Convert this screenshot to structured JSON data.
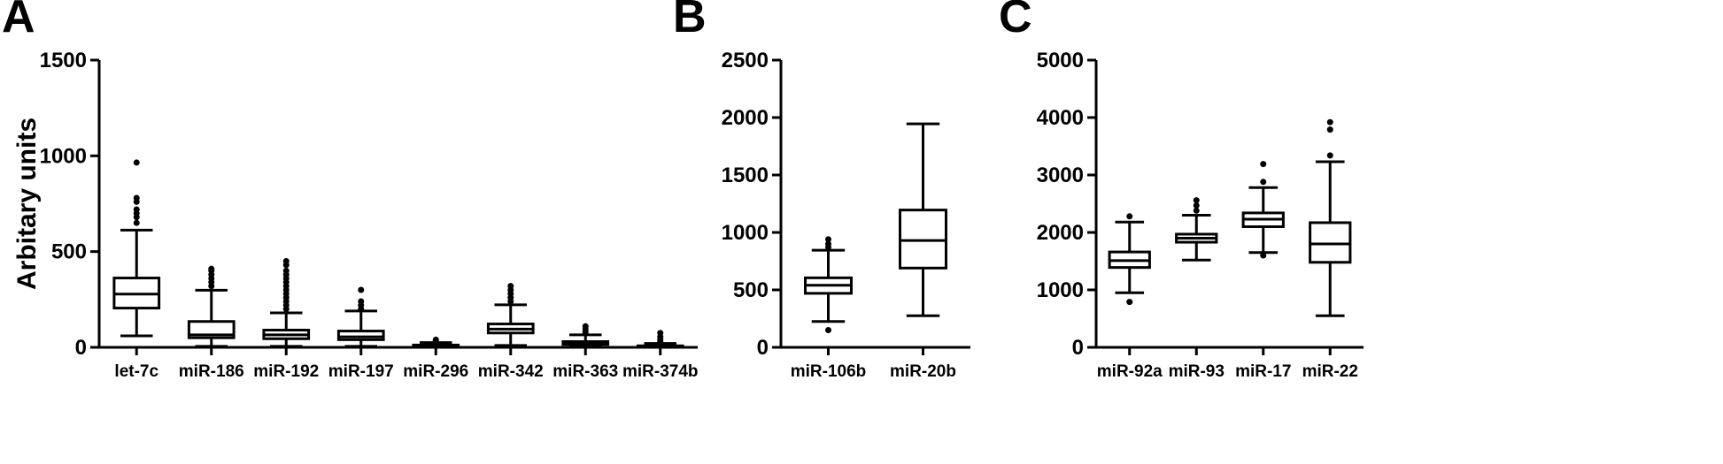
{
  "chart_data": [
    {
      "type": "box",
      "panel_label": "A",
      "ylabel": "Arbitary  units",
      "ylim": [
        0,
        1500
      ],
      "yticks": [
        0,
        500,
        1000,
        1500
      ],
      "grid": false,
      "categories": [
        "let-7c",
        "miR-186",
        "miR-192",
        "miR-197",
        "miR-296",
        "miR-342",
        "miR-363",
        "miR-374b"
      ],
      "boxes": [
        {
          "whisker_low": 60,
          "q1": 205,
          "median": 278,
          "q3": 362,
          "whisker_high": 612,
          "outliers": [
            650,
            680,
            700,
            720,
            760,
            780,
            965
          ]
        },
        {
          "whisker_low": 5,
          "q1": 50,
          "median": 65,
          "q3": 135,
          "whisker_high": 298,
          "outliers": [
            320,
            340,
            360,
            380,
            400,
            410
          ]
        },
        {
          "whisker_low": 5,
          "q1": 45,
          "median": 65,
          "q3": 90,
          "whisker_high": 180,
          "outliers": [
            200,
            220,
            240,
            260,
            280,
            300,
            320,
            340,
            360,
            380,
            400,
            430,
            450
          ]
        },
        {
          "whisker_low": 5,
          "q1": 40,
          "median": 55,
          "q3": 85,
          "whisker_high": 190,
          "outliers": [
            200,
            220,
            240,
            300
          ]
        },
        {
          "whisker_low": 0,
          "q1": 3,
          "median": 6,
          "q3": 12,
          "whisker_high": 25,
          "outliers": [
            30,
            35,
            40
          ]
        },
        {
          "whisker_low": 10,
          "q1": 75,
          "median": 95,
          "q3": 122,
          "whisker_high": 222,
          "outliers": [
            240,
            260,
            280,
            300,
            320
          ]
        },
        {
          "whisker_low": 3,
          "q1": 15,
          "median": 22,
          "q3": 30,
          "whisker_high": 65,
          "outliers": [
            80,
            95,
            110
          ]
        },
        {
          "whisker_low": 0,
          "q1": 2,
          "median": 4,
          "q3": 8,
          "whisker_high": 20,
          "outliers": [
            30,
            40,
            55,
            75
          ]
        }
      ]
    },
    {
      "type": "box",
      "panel_label": "B",
      "ylabel": "",
      "ylim": [
        0,
        2500
      ],
      "yticks": [
        0,
        500,
        1000,
        1500,
        2000,
        2500
      ],
      "grid": false,
      "categories": [
        "miR-106b",
        "miR-20b"
      ],
      "boxes": [
        {
          "whisker_low": 225,
          "q1": 470,
          "median": 540,
          "q3": 605,
          "whisker_high": 845,
          "outliers": [
            150,
            870,
            900,
            940
          ]
        },
        {
          "whisker_low": 275,
          "q1": 690,
          "median": 930,
          "q3": 1195,
          "whisker_high": 1945,
          "outliers": []
        }
      ]
    },
    {
      "type": "box",
      "panel_label": "C",
      "ylabel": "",
      "ylim": [
        0,
        5000
      ],
      "yticks": [
        0,
        1000,
        2000,
        3000,
        4000,
        5000
      ],
      "grid": false,
      "categories": [
        "miR-92a",
        "miR-93",
        "miR-17",
        "miR-22"
      ],
      "boxes": [
        {
          "whisker_low": 950,
          "q1": 1390,
          "median": 1510,
          "q3": 1660,
          "whisker_high": 2180,
          "outliers": [
            790,
            2280
          ]
        },
        {
          "whisker_low": 1520,
          "q1": 1830,
          "median": 1900,
          "q3": 1970,
          "whisker_high": 2300,
          "outliers": [
            2380,
            2470,
            2560
          ]
        },
        {
          "whisker_low": 1650,
          "q1": 2100,
          "median": 2230,
          "q3": 2340,
          "whisker_high": 2780,
          "outliers": [
            1600,
            2880,
            3190
          ]
        },
        {
          "whisker_low": 550,
          "q1": 1480,
          "median": 1800,
          "q3": 2170,
          "whisker_high": 3230,
          "outliers": [
            3340,
            3790,
            3920
          ]
        }
      ]
    }
  ]
}
